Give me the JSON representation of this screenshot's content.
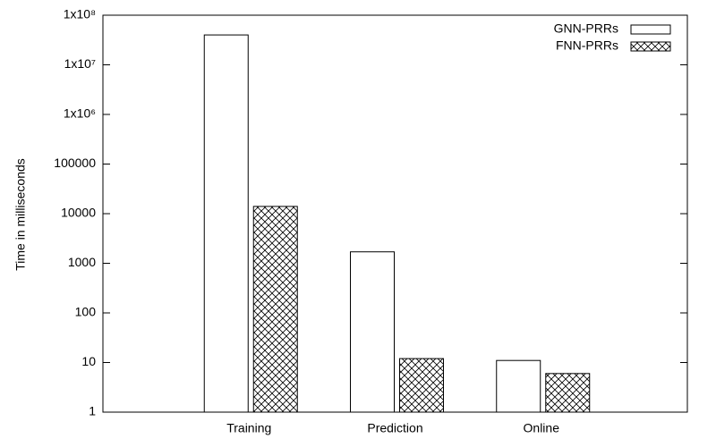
{
  "chart_data": {
    "type": "bar",
    "y_label": "Time in milliseconds",
    "categories": [
      "Training",
      "Prediction",
      "Online"
    ],
    "series": [
      {
        "name": "GNN-PRRs",
        "color": "#000000",
        "hatch": "none",
        "values": [
          40000000,
          1700,
          11
        ]
      },
      {
        "name": "FNN-PRRs",
        "color": "#000000",
        "hatch": "crosshatch",
        "values": [
          14000,
          12,
          6
        ]
      }
    ],
    "ylog": true,
    "ylim": [
      1,
      100000000
    ],
    "yticks": [
      1,
      10,
      100,
      1000,
      10000,
      100000,
      {
        "value": 1000000,
        "label": "1x10⁶"
      },
      {
        "value": 10000000,
        "label": "1x10⁷"
      },
      {
        "value": 100000000,
        "label": "1x10⁸"
      }
    ],
    "legend": "top-right"
  }
}
